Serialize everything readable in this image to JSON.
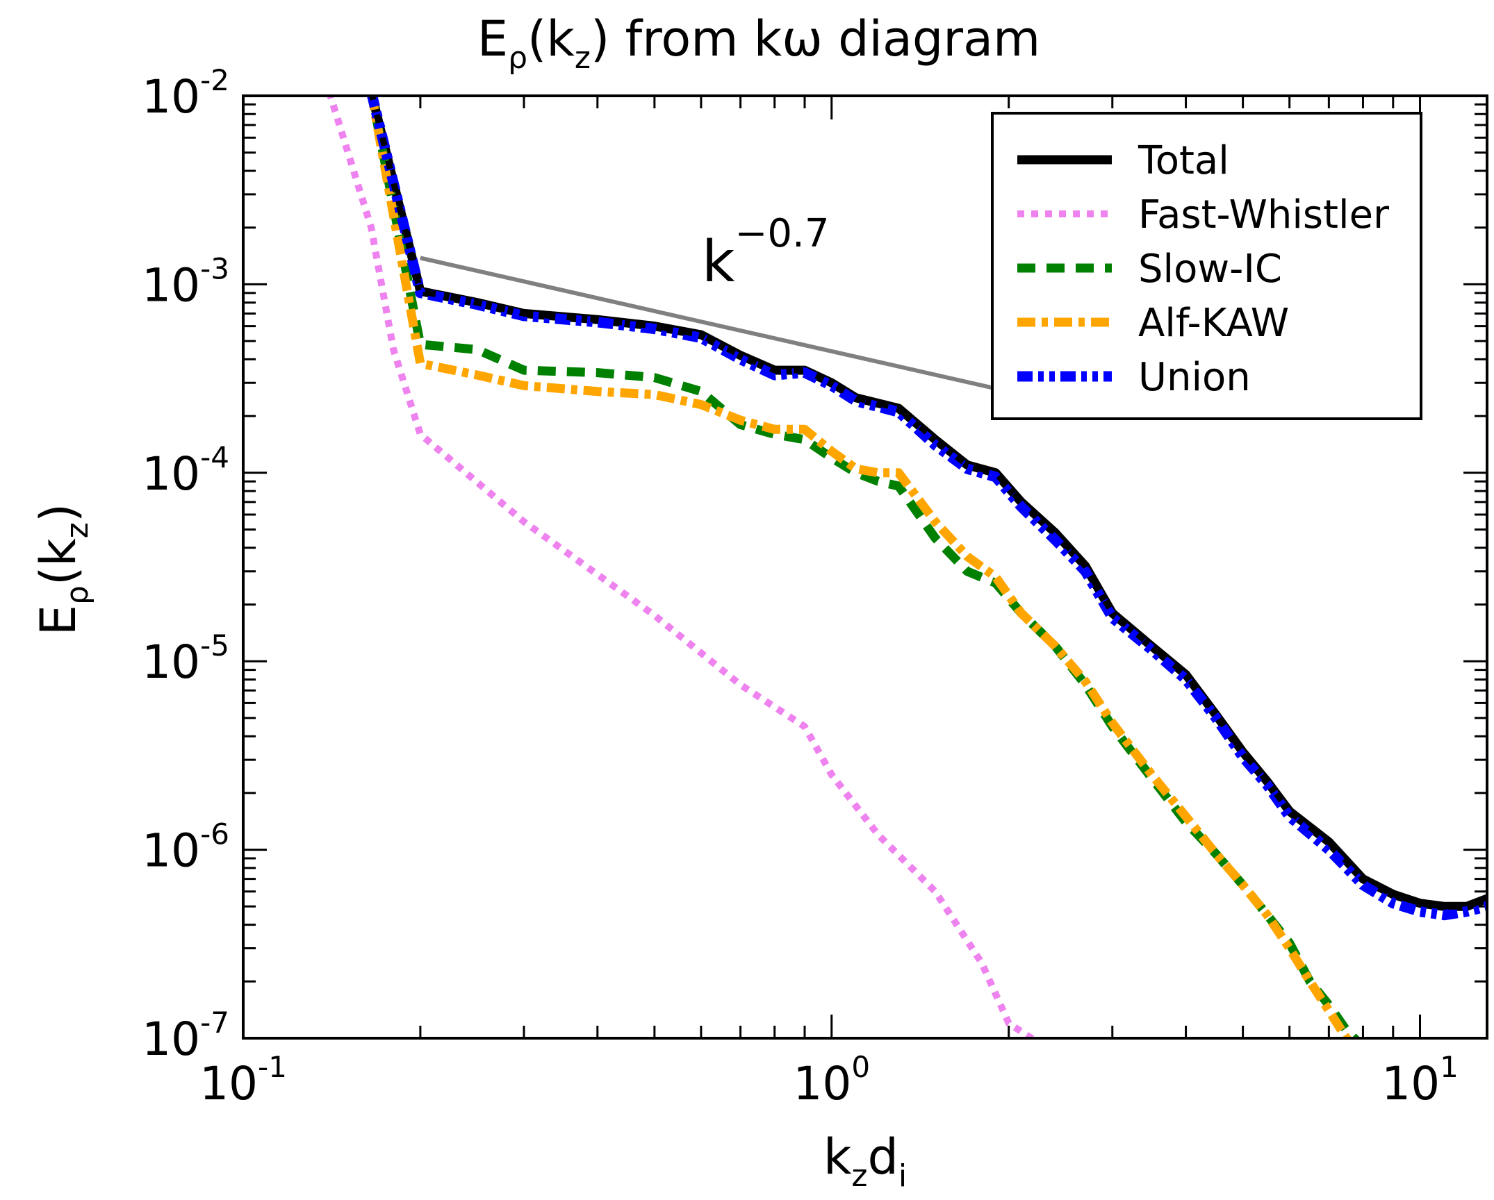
{
  "chart_data": {
    "type": "line",
    "title": "E_ρ(k_z) from kω diagram",
    "title_parts": {
      "main1": "E",
      "sub1": "ρ",
      "main2": "(k",
      "sub2": "z",
      "main3": ") from kω diagram"
    },
    "xlabel": "k_z d_i",
    "xlabel_parts": {
      "a": "k",
      "a_sub": "z",
      "b": "d",
      "b_sub": "i"
    },
    "ylabel": "E_ρ(k_z)",
    "ylabel_parts": {
      "a": "E",
      "a_sub": "ρ",
      "b": "(k",
      "b_sub": "z",
      "c": ")"
    },
    "xscale": "log",
    "yscale": "log",
    "xlim": [
      0.1,
      13.0
    ],
    "ylim": [
      1e-07,
      0.01
    ],
    "x_ticks": [
      {
        "value": 0.1,
        "base": "10",
        "exp": "-1"
      },
      {
        "value": 1,
        "base": "10",
        "exp": "0"
      },
      {
        "value": 10,
        "base": "10",
        "exp": "1"
      }
    ],
    "y_ticks": [
      {
        "value": 0.01,
        "base": "10",
        "exp": "-2"
      },
      {
        "value": 0.001,
        "base": "10",
        "exp": "-3"
      },
      {
        "value": 0.0001,
        "base": "10",
        "exp": "-4"
      },
      {
        "value": 1e-05,
        "base": "10",
        "exp": "-5"
      },
      {
        "value": 1e-06,
        "base": "10",
        "exp": "-6"
      },
      {
        "value": 1e-07,
        "base": "10",
        "exp": "-7"
      }
    ],
    "legend_position": "top-right",
    "series": [
      {
        "name": "Total",
        "color": "#000000",
        "style": "solid",
        "x": [
          0.165,
          0.2,
          0.25,
          0.3,
          0.4,
          0.5,
          0.6,
          0.7,
          0.8,
          0.9,
          1.0,
          1.1,
          1.3,
          1.5,
          1.7,
          1.9,
          2.1,
          2.4,
          2.7,
          3.0,
          3.5,
          4.0,
          4.5,
          5.0,
          5.5,
          6.0,
          7.0,
          8.0,
          9.0,
          10.0,
          11.0,
          12.0,
          13.0
        ],
        "values": [
          0.0105,
          0.00092,
          0.0008,
          0.0007,
          0.00065,
          0.0006,
          0.00054,
          0.00042,
          0.00035,
          0.00035,
          0.0003,
          0.00025,
          0.00022,
          0.00015,
          0.00011,
          0.0001,
          7e-05,
          4.8e-05,
          3.2e-05,
          1.8e-05,
          1.2e-05,
          8.5e-06,
          5.2e-06,
          3.3e-06,
          2.3e-06,
          1.6e-06,
          1.1e-06,
          7e-07,
          5.8e-07,
          5.2e-07,
          5e-07,
          5e-07,
          5.5e-07
        ]
      },
      {
        "name": "Fast-Whistler",
        "color": "#ee82ee",
        "style": "dotted",
        "x": [
          0.14,
          0.165,
          0.18,
          0.2,
          0.3,
          0.5,
          0.7,
          0.9,
          1.0,
          1.2,
          1.5,
          1.8,
          2.0,
          2.3
        ],
        "values": [
          0.0105,
          0.002,
          0.00045,
          0.00016,
          5.5e-05,
          1.75e-05,
          7.5e-06,
          4.5e-06,
          2.5e-06,
          1.2e-06,
          6e-07,
          2.5e-07,
          1.2e-07,
          9e-08
        ]
      },
      {
        "name": "Slow-IC",
        "color": "#008000",
        "style": "dashed",
        "x": [
          0.165,
          0.2,
          0.25,
          0.3,
          0.4,
          0.5,
          0.6,
          0.7,
          0.8,
          0.9,
          1.0,
          1.1,
          1.2,
          1.3,
          1.5,
          1.7,
          1.9,
          2.1,
          2.4,
          2.7,
          3.0,
          3.5,
          4.0,
          4.5,
          5.0,
          5.5,
          6.0,
          6.5,
          7.0,
          7.5,
          8.0
        ],
        "values": [
          0.0105,
          0.00048,
          0.00045,
          0.00035,
          0.00034,
          0.00032,
          0.00027,
          0.00018,
          0.00016,
          0.00015,
          0.00012,
          0.0001,
          9e-05,
          8.5e-05,
          4.5e-05,
          3e-05,
          2.6e-05,
          1.8e-05,
          1.2e-05,
          7.5e-06,
          4.5e-06,
          2.4e-06,
          1.4e-06,
          9.5e-07,
          6.5e-07,
          4.5e-07,
          3.2e-07,
          2e-07,
          1.5e-07,
          1.1e-07,
          9e-08
        ]
      },
      {
        "name": "Alf-KAW",
        "color": "#ffa500",
        "style": "dashdot",
        "x": [
          0.165,
          0.2,
          0.25,
          0.3,
          0.4,
          0.5,
          0.6,
          0.7,
          0.8,
          0.9,
          1.0,
          1.1,
          1.2,
          1.3,
          1.5,
          1.7,
          1.9,
          2.1,
          2.4,
          2.7,
          3.0,
          3.5,
          4.0,
          4.5,
          5.0,
          5.5,
          6.0,
          6.5,
          7.0,
          7.5,
          8.0
        ],
        "values": [
          0.0105,
          0.00038,
          0.00033,
          0.00029,
          0.00027,
          0.00026,
          0.00023,
          0.00019,
          0.00017,
          0.00017,
          0.00013,
          0.000105,
          0.0001,
          0.0001,
          5.5e-05,
          3.6e-05,
          2.8e-05,
          1.8e-05,
          1.2e-05,
          7.8e-06,
          4.7e-06,
          2.5e-06,
          1.5e-06,
          9.5e-07,
          6.5e-07,
          4.5e-07,
          3e-07,
          2e-07,
          1.4e-07,
          1e-07,
          8e-08
        ]
      },
      {
        "name": "Union",
        "color": "#0000ff",
        "style": "dashdotdot",
        "x": [
          0.165,
          0.2,
          0.25,
          0.3,
          0.4,
          0.5,
          0.6,
          0.7,
          0.8,
          0.9,
          1.0,
          1.1,
          1.3,
          1.5,
          1.7,
          1.9,
          2.1,
          2.4,
          2.7,
          3.0,
          3.5,
          4.0,
          4.5,
          5.0,
          5.5,
          6.0,
          7.0,
          8.0,
          9.0,
          10.0,
          11.0,
          12.0,
          13.0
        ],
        "values": [
          0.0105,
          0.0009,
          0.00078,
          0.00068,
          0.00063,
          0.00058,
          0.00052,
          0.0004,
          0.00033,
          0.00034,
          0.00029,
          0.00024,
          0.00021,
          0.00014,
          0.000105,
          9.5e-05,
          6.6e-05,
          4.4e-05,
          3e-05,
          1.7e-05,
          1.15e-05,
          8e-06,
          5e-06,
          3.1e-06,
          2.2e-06,
          1.5e-06,
          1e-06,
          6.5e-07,
          5.2e-07,
          4.7e-07,
          4.5e-07,
          4.7e-07,
          5e-07
        ]
      }
    ],
    "reference_line": {
      "label_base": "k",
      "label_exp": "−0.7",
      "color": "#808080",
      "x": [
        0.2,
        1.9
      ],
      "values": [
        0.00138,
        0.00028
      ]
    }
  }
}
